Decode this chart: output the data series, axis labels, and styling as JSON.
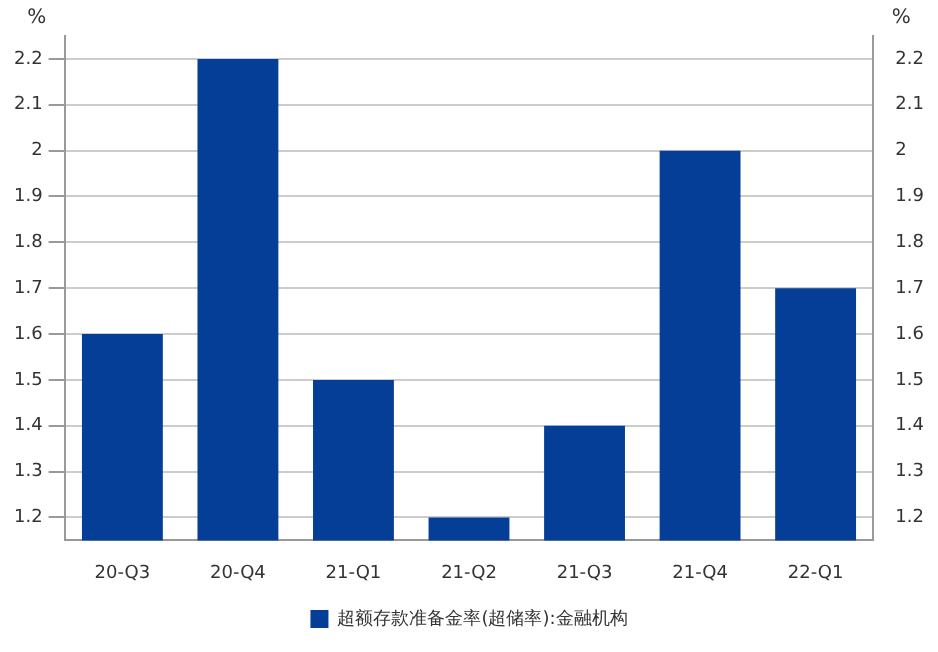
{
  "chart_data": {
    "type": "bar",
    "categories": [
      "20-Q3",
      "20-Q4",
      "21-Q1",
      "21-Q2",
      "21-Q3",
      "21-Q4",
      "22-Q1"
    ],
    "series": [
      {
        "name": "超额存款准备金率(超储率):金融机构",
        "color": "#053e96",
        "values": [
          1.6,
          2.2,
          1.5,
          1.2,
          1.4,
          2.0,
          1.7
        ]
      }
    ],
    "ylabel": "%",
    "y2label": "%",
    "ylim": [
      1.15,
      2.25
    ],
    "yticks": [
      1.2,
      1.3,
      1.4,
      1.5,
      1.6,
      1.7,
      1.8,
      1.9,
      2,
      2.1,
      2.2
    ],
    "y2lim": [
      1.15,
      2.25
    ],
    "y2ticks": [
      1.2,
      1.3,
      1.4,
      1.5,
      1.6,
      1.7,
      1.8,
      1.9,
      2,
      2.1,
      2.2
    ],
    "grid": "y",
    "legend": "bottom"
  }
}
